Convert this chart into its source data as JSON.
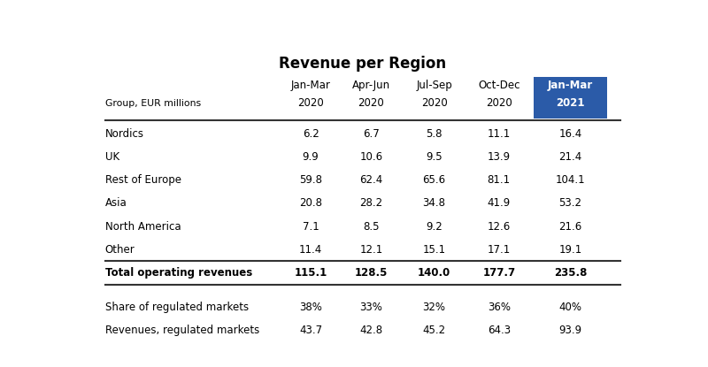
{
  "title": "Revenue per Region",
  "col_headers_line1": [
    "Jan-Mar",
    "Apr-Jun",
    "Jul-Sep",
    "Oct-Dec",
    "Jan-Mar"
  ],
  "col_headers_line2": [
    "2020",
    "2020",
    "2020",
    "2020",
    "2021"
  ],
  "row_label_header": "Group, EUR millions",
  "rows": [
    {
      "label": "Nordics",
      "values": [
        "6.2",
        "6.7",
        "5.8",
        "11.1",
        "16.4"
      ],
      "bold": false
    },
    {
      "label": "UK",
      "values": [
        "9.9",
        "10.6",
        "9.5",
        "13.9",
        "21.4"
      ],
      "bold": false
    },
    {
      "label": "Rest of Europe",
      "values": [
        "59.8",
        "62.4",
        "65.6",
        "81.1",
        "104.1"
      ],
      "bold": false
    },
    {
      "label": "Asia",
      "values": [
        "20.8",
        "28.2",
        "34.8",
        "41.9",
        "53.2"
      ],
      "bold": false
    },
    {
      "label": "North America",
      "values": [
        "7.1",
        "8.5",
        "9.2",
        "12.6",
        "21.6"
      ],
      "bold": false
    },
    {
      "label": "Other",
      "values": [
        "11.4",
        "12.1",
        "15.1",
        "17.1",
        "19.1"
      ],
      "bold": false
    },
    {
      "label": "Total operating revenues",
      "values": [
        "115.1",
        "128.5",
        "140.0",
        "177.7",
        "235.8"
      ],
      "bold": true
    }
  ],
  "extra_rows": [
    {
      "label": "Share of regulated markets",
      "values": [
        "38%",
        "33%",
        "32%",
        "36%",
        "40%"
      ],
      "bold": false
    },
    {
      "label": "Revenues, regulated markets",
      "values": [
        "43.7",
        "42.8",
        "45.2",
        "64.3",
        "93.9"
      ],
      "bold": false
    }
  ],
  "highlight_col_index": 4,
  "highlight_col_bg": "#2B5BA8",
  "highlight_col_text": "#FFFFFF",
  "background_color": "#FFFFFF",
  "table_text_color": "#000000",
  "header_text_color": "#000000",
  "separator_color": "#333333"
}
